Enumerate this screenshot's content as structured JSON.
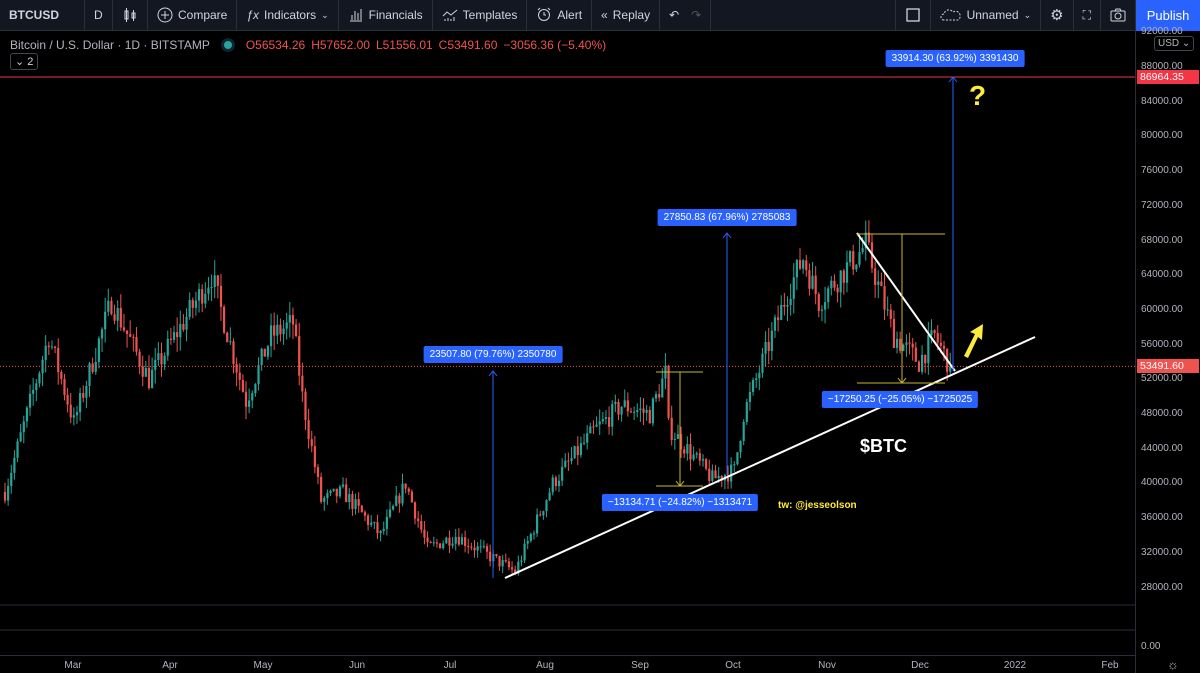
{
  "toolbar": {
    "symbol": "BTCUSD",
    "interval": "D",
    "compare": "Compare",
    "indicators": "Indicators",
    "financials": "Financials",
    "templates": "Templates",
    "alert": "Alert",
    "replay": "Replay",
    "layout_name": "Unnamed",
    "publish": "Publish"
  },
  "legend": {
    "title": "Bitcoin / U.S. Dollar · 1D · BITSTAMP",
    "open": "O56534.26",
    "high": "H57652.00",
    "low": "L51556.01",
    "close": "C53491.60",
    "change": "−3056.36 (−5.40%)",
    "collapse": "2"
  },
  "price_axis": {
    "currency": "USD",
    "ticks": [
      "92000.00",
      "88000.00",
      "84000.00",
      "80000.00",
      "76000.00",
      "72000.00",
      "68000.00",
      "64000.00",
      "60000.00",
      "56000.00",
      "52000.00",
      "48000.00",
      "44000.00",
      "40000.00",
      "36000.00",
      "32000.00",
      "28000.00"
    ],
    "target_label": "86964.35",
    "last_label": "53491.60",
    "pane2_tick": "0.00"
  },
  "time_axis": [
    "Mar",
    "Apr",
    "May",
    "Jun",
    "Jul",
    "Aug",
    "Sep",
    "Oct",
    "Nov",
    "Dec",
    "2022",
    "Feb"
  ],
  "annotations": {
    "m1": "23507.80 (79.76%) 2350780",
    "m2": "27850.83 (67.96%) 2785083",
    "m3": "33914.30 (63.92%) 3391430",
    "m4": "−13134.71 (−24.82%) −1313471",
    "m5": "−17250.25 (−25.05%) −1725025",
    "ticker": "$BTC",
    "credit": "tw: @jesseolson",
    "question": "?"
  },
  "colors": {
    "up": "#26a69a",
    "down": "#ef5350",
    "measure": "#2962ff",
    "target": "#f23645",
    "yellow": "#ffeb3b"
  },
  "chart_data": {
    "type": "candlestick",
    "price_path_waypoints": [
      [
        "2021-02-07",
        39000
      ],
      [
        "2021-02-21",
        57000
      ],
      [
        "2021-03-01",
        47000
      ],
      [
        "2021-03-13",
        61000
      ],
      [
        "2021-03-25",
        52000
      ],
      [
        "2021-04-14",
        64000
      ],
      [
        "2021-04-25",
        49500
      ],
      [
        "2021-05-03",
        57000
      ],
      [
        "2021-05-10",
        58500
      ],
      [
        "2021-05-13",
        50000
      ],
      [
        "2021-05-19",
        38000
      ],
      [
        "2021-05-26",
        39000
      ],
      [
        "2021-06-07",
        34000
      ],
      [
        "2021-06-15",
        40000
      ],
      [
        "2021-06-22",
        32500
      ],
      [
        "2021-07-01",
        34000
      ],
      [
        "2021-07-20",
        29800
      ],
      [
        "2021-08-01",
        40000
      ],
      [
        "2021-08-14",
        46000
      ],
      [
        "2021-08-23",
        49000
      ],
      [
        "2021-09-01",
        48000
      ],
      [
        "2021-09-06",
        52700
      ],
      [
        "2021-09-07",
        46500
      ],
      [
        "2021-09-21",
        40500
      ],
      [
        "2021-09-28",
        41500
      ],
      [
        "2021-10-01",
        48000
      ],
      [
        "2021-10-15",
        62000
      ],
      [
        "2021-10-20",
        66000
      ],
      [
        "2021-10-25",
        61000
      ],
      [
        "2021-11-09",
        67500
      ],
      [
        "2021-11-18",
        57000
      ],
      [
        "2021-11-26",
        54000
      ],
      [
        "2021-12-01",
        57000
      ],
      [
        "2021-12-06",
        53491.6
      ]
    ],
    "last_price": 53491.6,
    "target_price": 86964.35
  }
}
